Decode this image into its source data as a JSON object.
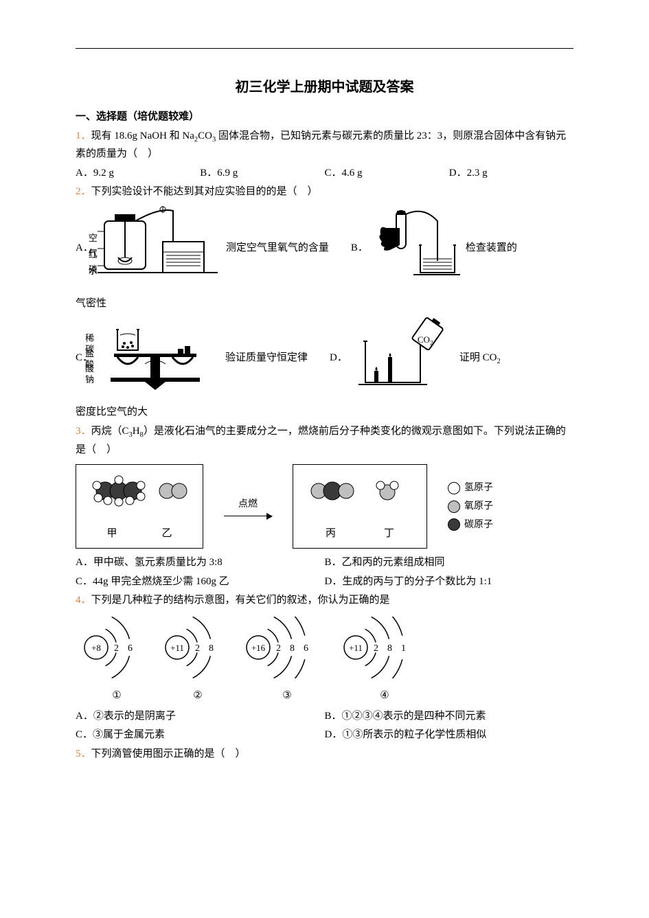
{
  "title": "初三化学上册期中试题及答案",
  "section1_head": "一、选择题（培优题较难）",
  "q1": {
    "num": "1．",
    "text_a": "现有 18.6g NaOH 和 Na",
    "sub1": "2",
    "text_b": "CO",
    "sub2": "3",
    "text_c": " 固体混合物，已知钠元素与碳元素的质量比 23：3，则原混合固体中含有钠元素的质量为（　）",
    "opts": {
      "A": "A．9.2 g",
      "B": "B．6.9 g",
      "C": "C．4.6 g",
      "D": "D．2.3 g"
    }
  },
  "q2": {
    "num": "2．",
    "text": "下列实验设计不能达到其对应实验目的的是（　）",
    "a_pre": "A．",
    "a_post": "测定空气里氧气的含量",
    "b_pre": "B．",
    "b_post": "检查装置的",
    "after_ab": "气密性",
    "c_pre": "C．",
    "c_post": "验证质量守恒定律",
    "d_pre": "D．",
    "d_post": "证明 CO",
    "d_sub": "2",
    "after_cd": "密度比空气的大",
    "labels": {
      "kongqi": "空气",
      "hongling": "红磷",
      "water": "水",
      "xyansuan": "稀盐酸",
      "tansuanna": "碳酸钠",
      "co2": "CO",
      "co2sub": "2"
    }
  },
  "q3": {
    "num": "3．",
    "text_a": "丙烷（C",
    "sub1": "3",
    "text_b": "H",
    "sub2": "8",
    "text_c": "）是液化石油气的主要成分之一，燃烧前后分子种类变化的微观示意图如下。下列说法正确的是（　）",
    "box1": {
      "l1": "甲",
      "l2": "乙"
    },
    "arrow": "点燃",
    "box2": {
      "l1": "丙",
      "l2": "丁"
    },
    "legend": {
      "h": "氢原子",
      "o": "氧原子",
      "c": "碳原子"
    },
    "opts": {
      "A": "A．甲中碳、氢元素质量比为 3:8",
      "B": "B．乙和丙的元素组成相同",
      "C": "C．44g 甲完全燃烧至少需 160g 乙",
      "D": "D．生成的丙与丁的分子个数比为 1:1"
    },
    "colors": {
      "h": "#ffffff",
      "o": "#bfbfbf",
      "c": "#3a3a3a"
    }
  },
  "q4": {
    "num": "4．",
    "text": "下列是几种粒子的结构示意图，有关它们的叙述，你认为正确的是",
    "atoms": [
      {
        "nuc": "+8",
        "shells": [
          "2",
          "6"
        ],
        "label": "①"
      },
      {
        "nuc": "+11",
        "shells": [
          "2",
          "8"
        ],
        "label": "②"
      },
      {
        "nuc": "+16",
        "shells": [
          "2",
          "8",
          "6"
        ],
        "label": "③"
      },
      {
        "nuc": "+11",
        "shells": [
          "2",
          "8",
          "1"
        ],
        "label": "④"
      }
    ],
    "opts": {
      "A": "A．②表示的是阴离子",
      "B": "B．①②③④表示的是四种不同元素",
      "C": "C．③属于金属元素",
      "D": "D．①③所表示的粒子化学性质相似"
    }
  },
  "q5": {
    "num": "5．",
    "text": "下列滴管使用图示正确的是（　）"
  }
}
